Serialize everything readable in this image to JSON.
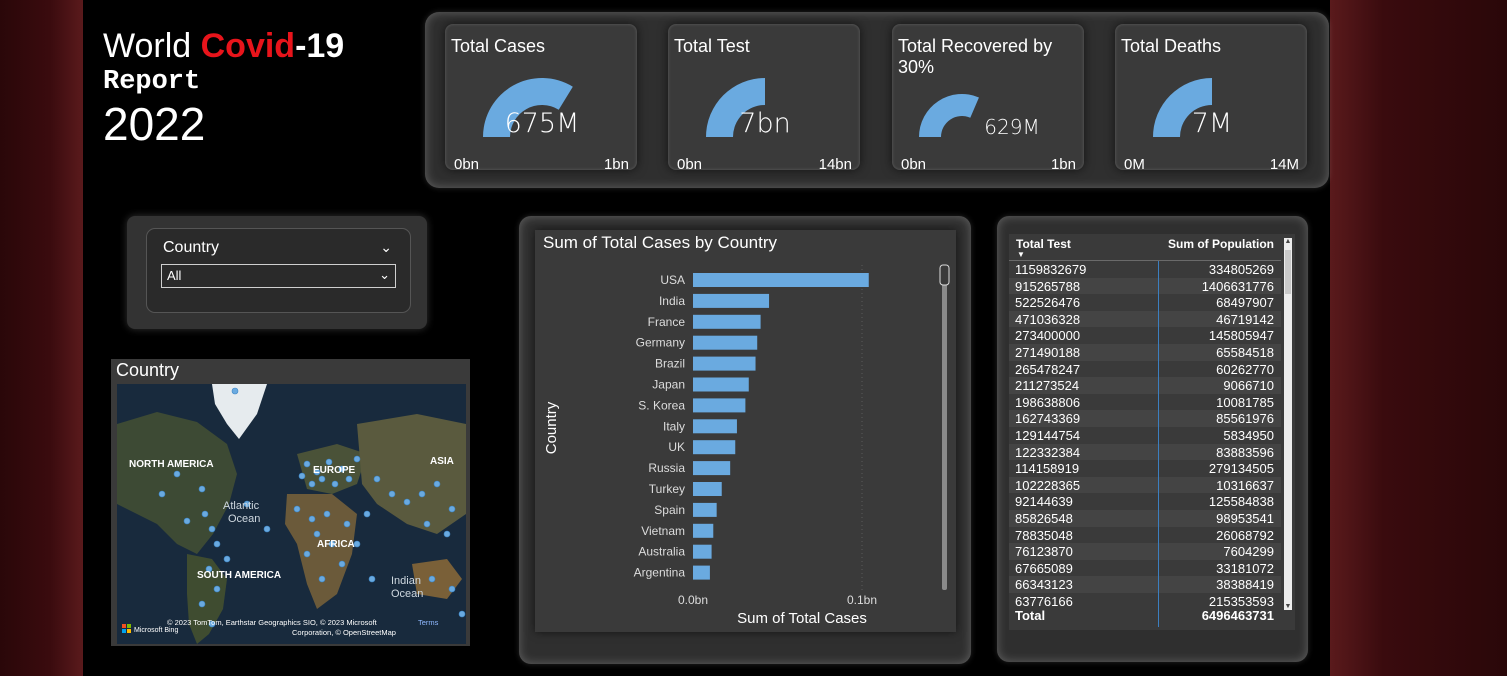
{
  "title": {
    "world": "World",
    "covid": "Covid",
    "nineteen": "-19",
    "report": "Report",
    "year": "2022"
  },
  "colors": {
    "accent": "#6aaae0",
    "red": "#e8141b",
    "card": "#3a3a3a"
  },
  "kpis": [
    {
      "title": "Total Cases",
      "value": "675M",
      "min": "0bn",
      "max": "1bn",
      "fill": 0.675
    },
    {
      "title": "Total Test",
      "value": "7bn",
      "min": "0bn",
      "max": "14bn",
      "fill": 0.5
    },
    {
      "title": "Total Recovered by 30%",
      "value": "629M",
      "min": "0bn",
      "max": "1bn",
      "fill": 0.629
    },
    {
      "title": "Total Deaths",
      "value": "7M",
      "min": "0M",
      "max": "14M",
      "fill": 0.5
    }
  ],
  "slicer": {
    "label": "Country",
    "selected": "All"
  },
  "map": {
    "title": "Country",
    "labels": {
      "north_america": "NORTH AMERICA",
      "europe": "EUROPE",
      "asia": "ASIA",
      "atlantic1": "Atlantic",
      "atlantic2": "Ocean",
      "africa": "AFRICA",
      "south_america": "SOUTH AMERICA",
      "indian1": "Indian",
      "indian2": "Ocean"
    },
    "attribution1": "© 2023 TomTom, Earthstar Geographics SIO, © 2023 Microsoft",
    "terms": "Terms",
    "attribution2": "Corporation, © OpenStreetMap",
    "bing": "Microsoft Bing"
  },
  "chart_data": {
    "type": "bar",
    "orientation": "horizontal",
    "title": "Sum of Total Cases by Country",
    "xlabel": "Sum of Total Cases",
    "ylabel": "Country",
    "xticks": [
      "0.0bn",
      "0.1bn"
    ],
    "xlim": [
      0,
      0.12
    ],
    "xunit": "bn",
    "categories": [
      "USA",
      "India",
      "France",
      "Germany",
      "Brazil",
      "Japan",
      "S. Korea",
      "Italy",
      "UK",
      "Russia",
      "Turkey",
      "Spain",
      "Vietnam",
      "Australia",
      "Argentina"
    ],
    "values": [
      0.104,
      0.045,
      0.04,
      0.038,
      0.037,
      0.033,
      0.031,
      0.026,
      0.025,
      0.022,
      0.017,
      0.014,
      0.012,
      0.011,
      0.01
    ]
  },
  "table": {
    "headers": [
      "Total Test",
      "Sum of Population"
    ],
    "rows": [
      [
        "1159832679",
        "334805269"
      ],
      [
        "915265788",
        "1406631776"
      ],
      [
        "522526476",
        "68497907"
      ],
      [
        "471036328",
        "46719142"
      ],
      [
        "273400000",
        "145805947"
      ],
      [
        "271490188",
        "65584518"
      ],
      [
        "265478247",
        "60262770"
      ],
      [
        "211273524",
        "9066710"
      ],
      [
        "198638806",
        "10081785"
      ],
      [
        "162743369",
        "85561976"
      ],
      [
        "129144754",
        "5834950"
      ],
      [
        "122332384",
        "83883596"
      ],
      [
        "114158919",
        "279134505"
      ],
      [
        "102228365",
        "10316637"
      ],
      [
        "92144639",
        "125584838"
      ],
      [
        "85826548",
        "98953541"
      ],
      [
        "78835048",
        "26068792"
      ],
      [
        "76123870",
        "7604299"
      ],
      [
        "67665089",
        "33181072"
      ],
      [
        "66343123",
        "38388419"
      ],
      [
        "63776166",
        "215353593"
      ]
    ],
    "total_label": "Total",
    "total_value": "6496463731"
  }
}
